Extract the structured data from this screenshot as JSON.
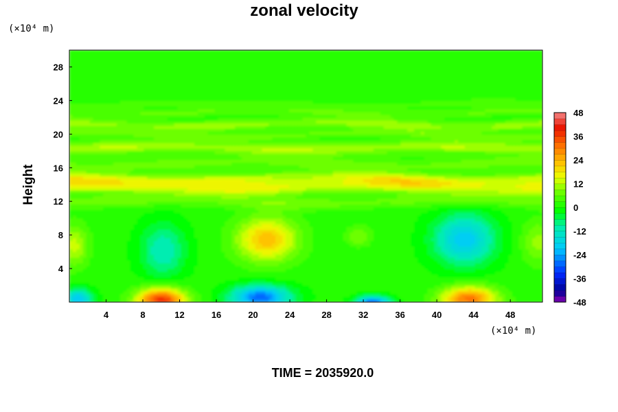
{
  "chart_data": {
    "type": "heatmap",
    "title": "zonal velocity",
    "ylabel": "Height",
    "x_unit": "(×10⁴ m)",
    "y_unit": "(×10⁴ m)",
    "xlim": [
      0,
      51.5
    ],
    "ylim": [
      0,
      30
    ],
    "x_ticks": [
      4,
      8,
      12,
      16,
      20,
      24,
      28,
      32,
      36,
      40,
      44,
      48
    ],
    "y_ticks": [
      4,
      8,
      12,
      16,
      20,
      24,
      28
    ],
    "colorbar": {
      "min": -48,
      "max": 48,
      "step": 3,
      "ticks": [
        48,
        36,
        24,
        12,
        0,
        -12,
        -24,
        -36,
        -48
      ]
    },
    "footer": "TIME = 2035920.0",
    "field": {
      "background": 1,
      "bands": [
        {
          "y": 12.0,
          "value": 6,
          "width": 0.8
        },
        {
          "y": 13.8,
          "value": 14,
          "width": 0.9
        },
        {
          "y": 14.8,
          "value": 9,
          "width": 0.7
        },
        {
          "y": 16.5,
          "value": 6,
          "width": 0.8
        },
        {
          "y": 18.4,
          "value": 10,
          "width": 0.8
        },
        {
          "y": 20.0,
          "value": 6,
          "width": 0.5
        },
        {
          "y": 21.2,
          "value": 9,
          "width": 0.6
        },
        {
          "y": 22.6,
          "value": 5,
          "width": 0.5
        },
        {
          "y": 23.6,
          "value": 3,
          "width": 0.5
        }
      ],
      "blobs": [
        {
          "x": 0.5,
          "y": 6.8,
          "value": 12,
          "sx": 1.6,
          "sy": 2.5
        },
        {
          "x": 10.2,
          "y": 6.2,
          "value": -13,
          "sx": 2.4,
          "sy": 3.2
        },
        {
          "x": 21.5,
          "y": 7.5,
          "value": 22,
          "sx": 3.3,
          "sy": 2.6
        },
        {
          "x": 31.5,
          "y": 7.9,
          "value": 8,
          "sx": 1.4,
          "sy": 1.2
        },
        {
          "x": 43.0,
          "y": 7.5,
          "value": -21,
          "sx": 3.3,
          "sy": 3.0
        },
        {
          "x": 51.0,
          "y": 7.2,
          "value": 9,
          "sx": 1.8,
          "sy": 2.6
        },
        {
          "x": 10.0,
          "y": 0.3,
          "value": 37,
          "sx": 2.6,
          "sy": 1.4
        },
        {
          "x": 20.8,
          "y": 0.6,
          "value": -30,
          "sx": 3.2,
          "sy": 1.4
        },
        {
          "x": 33.0,
          "y": -0.1,
          "value": -34,
          "sx": 1.8,
          "sy": 0.8
        },
        {
          "x": 43.5,
          "y": 0.4,
          "value": 30,
          "sx": 3.0,
          "sy": 1.5
        },
        {
          "x": 1.0,
          "y": 0.4,
          "value": -22,
          "sx": 1.5,
          "sy": 1.2
        }
      ]
    }
  }
}
